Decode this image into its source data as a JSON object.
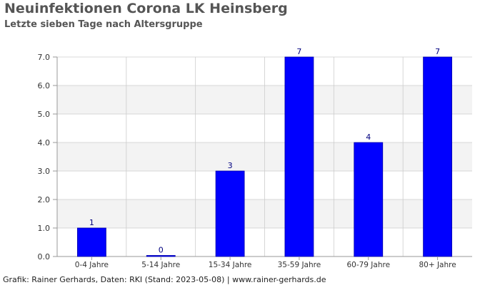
{
  "title": "Neuinfektionen Corona LK Heinsberg",
  "subtitle": "Letzte sieben Tage nach Altersgruppe",
  "footer": "Grafik: Rainer Gerhards, Daten: RKI (Stand: 2023-05-08) | www.rainer-gerhards.de",
  "chart_data": {
    "type": "bar",
    "categories": [
      "0-4 Jahre",
      "5-14 Jahre",
      "15-34 Jahre",
      "35-59 Jahre",
      "60-79 Jahre",
      "80+ Jahre"
    ],
    "values": [
      1,
      0,
      3,
      7,
      4,
      7
    ],
    "data_labels": [
      "1",
      "0",
      "3",
      "7",
      "4",
      "7"
    ],
    "yticks": [
      "0.0",
      "1.0",
      "2.0",
      "3.0",
      "4.0",
      "5.0",
      "6.0",
      "7.0"
    ],
    "ylim": [
      0,
      7
    ],
    "xlabel": "",
    "ylabel": "",
    "grid": true,
    "colors": {
      "bar": "#0000ff",
      "bar_border": "#0000aa",
      "label": "#000080",
      "band": "#f3f3f3",
      "grid": "#cccccc",
      "axis": "#999999",
      "tick_text": "#333333"
    }
  }
}
